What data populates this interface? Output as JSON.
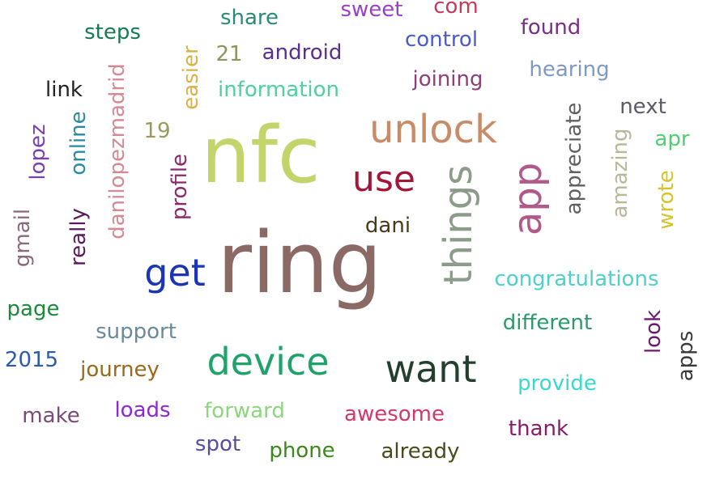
{
  "words": [
    {
      "text": "nfc",
      "color": "#c3d46b"
    },
    {
      "text": "ring",
      "color": "#8b6a66"
    },
    {
      "text": "unlock",
      "color": "#c98a68"
    },
    {
      "text": "use",
      "color": "#a3163a"
    },
    {
      "text": "things",
      "color": "#8d9c8a"
    },
    {
      "text": "app",
      "color": "#b05a8a"
    },
    {
      "text": "get",
      "color": "#1a35b8"
    },
    {
      "text": "device",
      "color": "#1fa36a"
    },
    {
      "text": "want",
      "color": "#23402f"
    },
    {
      "text": "share",
      "color": "#2a8a78"
    },
    {
      "text": "sweet",
      "color": "#9b40c4"
    },
    {
      "text": "com",
      "color": "#c73a5a"
    },
    {
      "text": "found",
      "color": "#7a2f86"
    },
    {
      "text": "steps",
      "color": "#187a55"
    },
    {
      "text": "control",
      "color": "#4a5bd0"
    },
    {
      "text": "21",
      "color": "#8a9860"
    },
    {
      "text": "android",
      "color": "#5a2f8f"
    },
    {
      "text": "easier",
      "color": "#d8b24a"
    },
    {
      "text": "hearing",
      "color": "#7f9ac2"
    },
    {
      "text": "joining",
      "color": "#8d3f7a"
    },
    {
      "text": "link",
      "color": "#222222"
    },
    {
      "text": "information",
      "color": "#4fd0a0"
    },
    {
      "text": "danilopezmadrid",
      "color": "#d48a95"
    },
    {
      "text": "next",
      "color": "#5a5a6a"
    },
    {
      "text": "appreciate",
      "color": "#606060"
    },
    {
      "text": "19",
      "color": "#9a9a5a"
    },
    {
      "text": "amazing",
      "color": "#b8b898"
    },
    {
      "text": "apr",
      "color": "#4fd070"
    },
    {
      "text": "lopez",
      "color": "#7a3fb0"
    },
    {
      "text": "online",
      "color": "#2a8aa0"
    },
    {
      "text": "profile",
      "color": "#8a2a6a"
    },
    {
      "text": "wrote",
      "color": "#d4c42a"
    },
    {
      "text": "dani",
      "color": "#4a3a1a"
    },
    {
      "text": "gmail",
      "color": "#8a6a7a"
    },
    {
      "text": "really",
      "color": "#5a1a5a"
    },
    {
      "text": "congratulations",
      "color": "#4fd0c8"
    },
    {
      "text": "page",
      "color": "#1a8a3a"
    },
    {
      "text": "support",
      "color": "#6a8a9a"
    },
    {
      "text": "different",
      "color": "#2a9a6a"
    },
    {
      "text": "look",
      "color": "#6a1a6a"
    },
    {
      "text": "apps",
      "color": "#3a3a3a"
    },
    {
      "text": "2015",
      "color": "#2a5aaa"
    },
    {
      "text": "journey",
      "color": "#9a6a1a"
    },
    {
      "text": "provide",
      "color": "#3ad8d0"
    },
    {
      "text": "make",
      "color": "#7a4a7a"
    },
    {
      "text": "loads",
      "color": "#8a2ad0"
    },
    {
      "text": "forward",
      "color": "#8ad87a"
    },
    {
      "text": "awesome",
      "color": "#d03a6a"
    },
    {
      "text": "thank",
      "color": "#8a1a6a"
    },
    {
      "text": "spot",
      "color": "#5a4aa0"
    },
    {
      "text": "phone",
      "color": "#3a8a1a"
    },
    {
      "text": "already",
      "color": "#4a4a1a"
    }
  ]
}
